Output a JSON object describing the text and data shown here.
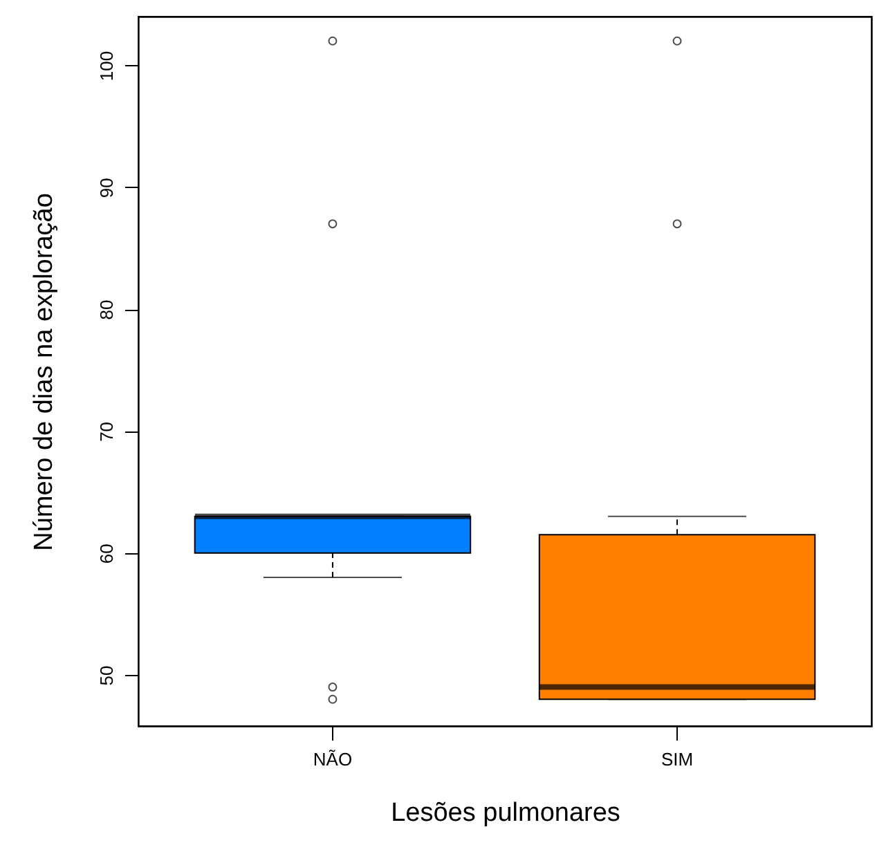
{
  "chart_data": {
    "type": "box",
    "xlabel": "Lesões pulmonares",
    "ylabel": "Número de dias na exploração",
    "categories": [
      "NÃO",
      "SIM"
    ],
    "colors": [
      "#0080ff",
      "#ff8000"
    ],
    "boxes": [
      {
        "low": 58,
        "q1": 60,
        "median": 63,
        "q3": 63,
        "high": 63,
        "outliers": [
          102,
          87,
          49,
          48
        ]
      },
      {
        "low": 48,
        "q1": 48,
        "median": 49,
        "q3": 61.5,
        "high": 63,
        "outliers": [
          102,
          87
        ]
      }
    ],
    "ylim": [
      45.8,
      104
    ],
    "yticks": [
      50,
      60,
      70,
      80,
      90,
      100
    ],
    "grid": false
  }
}
